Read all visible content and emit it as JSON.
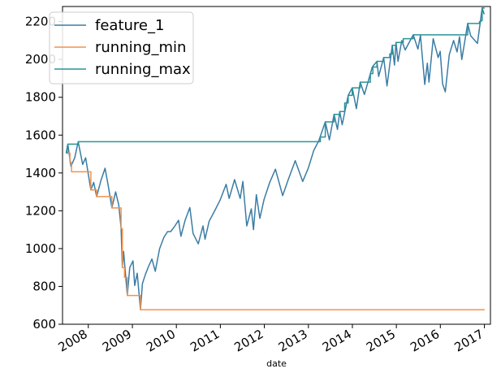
{
  "chart_data": {
    "type": "line",
    "title": "",
    "xlabel": "date",
    "ylabel": "",
    "ylim": [
      600,
      2280
    ],
    "xlim": [
      "2007-06-01",
      "2017-02-20"
    ],
    "grid": false,
    "legend_position": "top-left",
    "y_ticks": [
      600,
      800,
      1000,
      1200,
      1400,
      1600,
      1800,
      2000,
      2200
    ],
    "x_ticks": [
      {
        "date": "2008-01-01",
        "label": "2008"
      },
      {
        "date": "2009-01-01",
        "label": "2009"
      },
      {
        "date": "2010-01-01",
        "label": "2010"
      },
      {
        "date": "2011-01-01",
        "label": "2011"
      },
      {
        "date": "2012-01-01",
        "label": "2012"
      },
      {
        "date": "2013-01-01",
        "label": "2013"
      },
      {
        "date": "2014-01-01",
        "label": "2014"
      },
      {
        "date": "2015-01-01",
        "label": "2015"
      },
      {
        "date": "2016-01-01",
        "label": "2016"
      },
      {
        "date": "2017-01-01",
        "label": "2017"
      }
    ],
    "colors": {
      "feature_1": "#3a7ca5",
      "running_min": "#f0924f",
      "running_max": "#2a9396"
    },
    "series": [
      {
        "name": "feature_1",
        "style": "line",
        "points": [
          [
            "2007-07-01",
            1505
          ],
          [
            "2007-07-15",
            1552
          ],
          [
            "2007-08-10",
            1435
          ],
          [
            "2007-09-10",
            1480
          ],
          [
            "2007-10-09",
            1565
          ],
          [
            "2007-11-15",
            1445
          ],
          [
            "2007-12-10",
            1480
          ],
          [
            "2008-01-22",
            1310
          ],
          [
            "2008-02-15",
            1350
          ],
          [
            "2008-03-10",
            1275
          ],
          [
            "2008-04-15",
            1360
          ],
          [
            "2008-05-19",
            1425
          ],
          [
            "2008-06-15",
            1330
          ],
          [
            "2008-07-15",
            1215
          ],
          [
            "2008-08-15",
            1300
          ],
          [
            "2008-09-10",
            1230
          ],
          [
            "2008-09-29",
            1110
          ],
          [
            "2008-10-10",
            900
          ],
          [
            "2008-10-20",
            985
          ],
          [
            "2008-11-20",
            752
          ],
          [
            "2008-12-10",
            900
          ],
          [
            "2009-01-06",
            935
          ],
          [
            "2009-01-20",
            805
          ],
          [
            "2009-02-10",
            870
          ],
          [
            "2009-03-09",
            677
          ],
          [
            "2009-03-25",
            815
          ],
          [
            "2009-04-20",
            865
          ],
          [
            "2009-05-15",
            905
          ],
          [
            "2009-06-12",
            945
          ],
          [
            "2009-07-10",
            880
          ],
          [
            "2009-08-15",
            1000
          ],
          [
            "2009-09-20",
            1060
          ],
          [
            "2009-10-20",
            1090
          ],
          [
            "2009-11-15",
            1090
          ],
          [
            "2009-12-15",
            1115
          ],
          [
            "2010-01-19",
            1150
          ],
          [
            "2010-02-08",
            1065
          ],
          [
            "2010-03-15",
            1150
          ],
          [
            "2010-04-23",
            1217
          ],
          [
            "2010-05-20",
            1080
          ],
          [
            "2010-07-02",
            1025
          ],
          [
            "2010-08-10",
            1120
          ],
          [
            "2010-08-27",
            1050
          ],
          [
            "2010-09-30",
            1145
          ],
          [
            "2010-11-15",
            1200
          ],
          [
            "2010-12-31",
            1258
          ],
          [
            "2011-02-18",
            1340
          ],
          [
            "2011-03-15",
            1265
          ],
          [
            "2011-04-29",
            1365
          ],
          [
            "2011-06-15",
            1265
          ],
          [
            "2011-07-07",
            1355
          ],
          [
            "2011-08-08",
            1120
          ],
          [
            "2011-09-15",
            1210
          ],
          [
            "2011-10-03",
            1100
          ],
          [
            "2011-10-27",
            1285
          ],
          [
            "2011-11-25",
            1160
          ],
          [
            "2011-12-30",
            1260
          ],
          [
            "2012-02-15",
            1350
          ],
          [
            "2012-04-02",
            1420
          ],
          [
            "2012-06-01",
            1280
          ],
          [
            "2012-07-15",
            1360
          ],
          [
            "2012-09-14",
            1465
          ],
          [
            "2012-11-15",
            1355
          ],
          [
            "2012-12-31",
            1426
          ],
          [
            "2013-02-15",
            1520
          ],
          [
            "2013-03-28",
            1570
          ],
          [
            "2013-05-21",
            1670
          ],
          [
            "2013-06-24",
            1575
          ],
          [
            "2013-08-02",
            1710
          ],
          [
            "2013-08-30",
            1630
          ],
          [
            "2013-09-18",
            1725
          ],
          [
            "2013-10-08",
            1655
          ],
          [
            "2013-11-27",
            1810
          ],
          [
            "2013-12-31",
            1850
          ],
          [
            "2014-02-03",
            1740
          ],
          [
            "2014-03-07",
            1880
          ],
          [
            "2014-04-11",
            1815
          ],
          [
            "2014-06-15",
            1960
          ],
          [
            "2014-07-24",
            1990
          ],
          [
            "2014-08-07",
            1910
          ],
          [
            "2014-09-18",
            2010
          ],
          [
            "2014-10-15",
            1860
          ],
          [
            "2014-11-28",
            2075
          ],
          [
            "2014-12-16",
            1970
          ],
          [
            "2014-12-29",
            2090
          ],
          [
            "2015-01-15",
            1990
          ],
          [
            "2015-02-15",
            2100
          ],
          [
            "2015-03-15",
            2050
          ],
          [
            "2015-05-21",
            2130
          ],
          [
            "2015-06-29",
            2055
          ],
          [
            "2015-07-20",
            2128
          ],
          [
            "2015-08-25",
            1868
          ],
          [
            "2015-09-15",
            1980
          ],
          [
            "2015-09-29",
            1880
          ],
          [
            "2015-11-03",
            2110
          ],
          [
            "2015-12-14",
            2010
          ],
          [
            "2015-12-31",
            2043
          ],
          [
            "2016-01-20",
            1870
          ],
          [
            "2016-02-11",
            1829
          ],
          [
            "2016-03-15",
            2025
          ],
          [
            "2016-04-20",
            2100
          ],
          [
            "2016-05-19",
            2040
          ],
          [
            "2016-06-08",
            2120
          ],
          [
            "2016-06-27",
            2000
          ],
          [
            "2016-08-15",
            2190
          ],
          [
            "2016-09-09",
            2125
          ],
          [
            "2016-11-04",
            2085
          ],
          [
            "2016-12-13",
            2272
          ],
          [
            "2016-12-30",
            2239
          ]
        ]
      },
      {
        "name": "running_min",
        "style": "step",
        "points": [
          [
            "2007-07-01",
            1505
          ],
          [
            "2007-08-01",
            1455
          ],
          [
            "2007-08-15",
            1406
          ],
          [
            "2007-11-26",
            1406
          ],
          [
            "2008-01-22",
            1310
          ],
          [
            "2008-03-10",
            1275
          ],
          [
            "2008-07-15",
            1215
          ],
          [
            "2008-09-29",
            1106
          ],
          [
            "2008-10-10",
            899
          ],
          [
            "2008-10-27",
            848
          ],
          [
            "2008-11-20",
            752
          ],
          [
            "2009-03-09",
            677
          ],
          [
            "2017-01-03",
            677
          ]
        ]
      },
      {
        "name": "running_max",
        "style": "step",
        "points": [
          [
            "2007-07-01",
            1505
          ],
          [
            "2007-07-10",
            1540
          ],
          [
            "2007-07-16",
            1552
          ],
          [
            "2007-10-09",
            1565
          ],
          [
            "2013-03-28",
            1565
          ],
          [
            "2013-04-10",
            1590
          ],
          [
            "2013-05-21",
            1670
          ],
          [
            "2013-08-02",
            1710
          ],
          [
            "2013-09-18",
            1725
          ],
          [
            "2013-10-29",
            1770
          ],
          [
            "2013-11-27",
            1810
          ],
          [
            "2013-12-31",
            1850
          ],
          [
            "2014-03-07",
            1880
          ],
          [
            "2014-05-30",
            1925
          ],
          [
            "2014-06-20",
            1960
          ],
          [
            "2014-07-24",
            1990
          ],
          [
            "2014-09-18",
            2010
          ],
          [
            "2014-11-07",
            2030
          ],
          [
            "2014-11-28",
            2075
          ],
          [
            "2014-12-29",
            2090
          ],
          [
            "2015-02-27",
            2110
          ],
          [
            "2015-05-21",
            2130
          ],
          [
            "2016-07-20",
            2130
          ],
          [
            "2016-08-15",
            2190
          ],
          [
            "2016-11-21",
            2200
          ],
          [
            "2016-12-01",
            2205
          ],
          [
            "2016-12-13",
            2272
          ],
          [
            "2017-01-03",
            2272
          ]
        ]
      }
    ]
  }
}
